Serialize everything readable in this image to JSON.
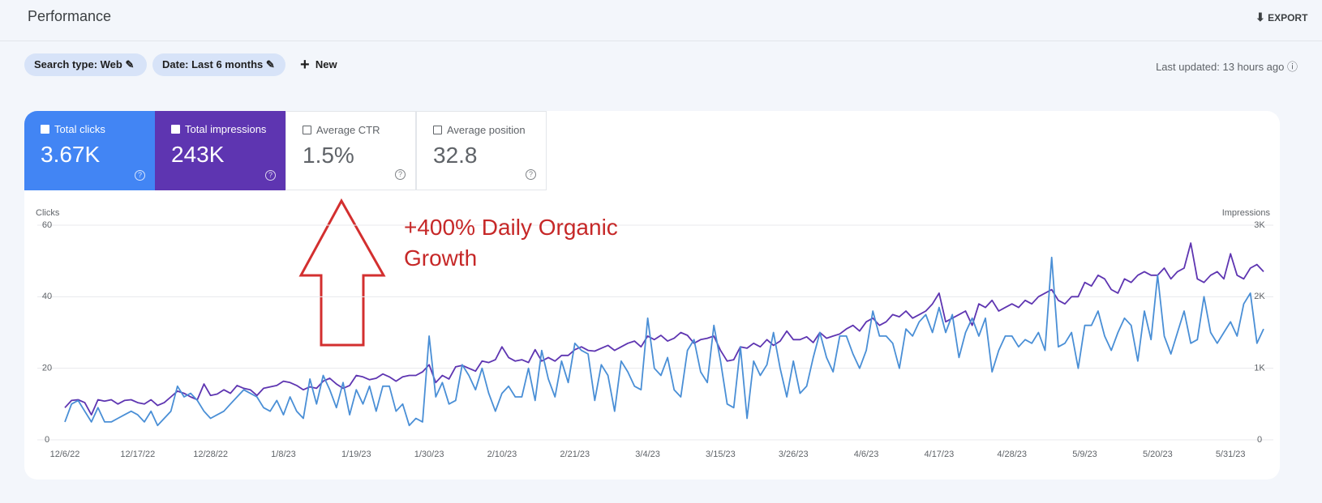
{
  "header": {
    "title": "Performance",
    "export": "EXPORT"
  },
  "filters": {
    "search_type": "Search type: Web",
    "date": "Date: Last 6 months",
    "new": "New",
    "last_updated": "Last updated: 13 hours ago"
  },
  "metrics": [
    {
      "label": "Total clicks",
      "value": "3.67K"
    },
    {
      "label": "Total impressions",
      "value": "243K"
    },
    {
      "label": "Average CTR",
      "value": "1.5%"
    },
    {
      "label": "Average position",
      "value": "32.8"
    }
  ],
  "annotation": "+400% Daily Organic Growth",
  "chart_data": {
    "type": "line",
    "y_label": "Clicks",
    "y2_label": "Impressions",
    "categories": [
      "12/6/22",
      null,
      null,
      null,
      null,
      null,
      null,
      null,
      null,
      null,
      null,
      "12/17/22",
      null,
      null,
      null,
      null,
      null,
      null,
      null,
      null,
      null,
      null,
      "12/28/22",
      null,
      null,
      null,
      null,
      null,
      null,
      null,
      null,
      null,
      null,
      "1/8/23",
      null,
      null,
      null,
      null,
      null,
      null,
      null,
      null,
      null,
      null,
      "1/19/23",
      null,
      null,
      null,
      null,
      null,
      null,
      null,
      null,
      null,
      null,
      "1/30/23",
      null,
      null,
      null,
      null,
      null,
      null,
      null,
      null,
      null,
      null,
      "2/10/23",
      null,
      null,
      null,
      null,
      null,
      null,
      null,
      null,
      null,
      null,
      "2/21/23",
      null,
      null,
      null,
      null,
      null,
      null,
      null,
      null,
      null,
      null,
      "3/4/23",
      null,
      null,
      null,
      null,
      null,
      null,
      null,
      null,
      null,
      null,
      "3/15/23",
      null,
      null,
      null,
      null,
      null,
      null,
      null,
      null,
      null,
      null,
      "3/26/23",
      null,
      null,
      null,
      null,
      null,
      null,
      null,
      null,
      null,
      null,
      "4/6/23",
      null,
      null,
      null,
      null,
      null,
      null,
      null,
      null,
      null,
      null,
      "4/17/23",
      null,
      null,
      null,
      null,
      null,
      null,
      null,
      null,
      null,
      null,
      "4/28/23",
      null,
      null,
      null,
      null,
      null,
      null,
      null,
      null,
      null,
      null,
      "5/9/23",
      null,
      null,
      null,
      null,
      null,
      null,
      null,
      null,
      null,
      null,
      "5/20/23",
      null,
      null,
      null,
      null,
      null,
      null,
      null,
      null,
      null,
      null,
      "5/31/23",
      null,
      null,
      null,
      null,
      null
    ],
    "ylim": [
      0,
      60
    ],
    "yticks": [
      0,
      20,
      40,
      60
    ],
    "y2lim": [
      0,
      3000
    ],
    "y2ticks": [
      0,
      {
        "value": 1000,
        "label": "1K"
      },
      {
        "value": 2000,
        "label": "2K"
      },
      {
        "value": 3000,
        "label": "3K"
      }
    ],
    "grid": true,
    "series": [
      {
        "name": "Impressions",
        "color": "#5e35b1",
        "axis": "y2",
        "values": [
          450,
          550,
          560,
          520,
          350,
          560,
          540,
          560,
          500,
          550,
          560,
          520,
          500,
          560,
          480,
          520,
          600,
          680,
          650,
          600,
          560,
          780,
          620,
          640,
          700,
          650,
          760,
          720,
          700,
          620,
          720,
          740,
          760,
          820,
          800,
          760,
          700,
          740,
          720,
          820,
          860,
          780,
          720,
          760,
          900,
          880,
          840,
          860,
          920,
          880,
          820,
          880,
          900,
          900,
          950,
          1050,
          800,
          900,
          850,
          1020,
          1040,
          1000,
          960,
          1100,
          1080,
          1120,
          1300,
          1150,
          1100,
          1120,
          1080,
          1260,
          1100,
          1150,
          1100,
          1180,
          1180,
          1260,
          1300,
          1250,
          1240,
          1280,
          1320,
          1250,
          1300,
          1350,
          1380,
          1300,
          1450,
          1400,
          1460,
          1380,
          1420,
          1500,
          1460,
          1350,
          1400,
          1420,
          1450,
          1250,
          1100,
          1120,
          1300,
          1280,
          1350,
          1300,
          1400,
          1320,
          1380,
          1520,
          1400,
          1400,
          1440,
          1360,
          1500,
          1420,
          1450,
          1480,
          1550,
          1600,
          1520,
          1650,
          1700,
          1600,
          1650,
          1750,
          1720,
          1800,
          1700,
          1750,
          1800,
          1900,
          2050,
          1650,
          1700,
          1750,
          1800,
          1600,
          1900,
          1850,
          1950,
          1800,
          1850,
          1900,
          1850,
          1950,
          1900,
          2000,
          2050,
          2100,
          1950,
          1900,
          2000,
          2000,
          2200,
          2150,
          2300,
          2250,
          2100,
          2050,
          2250,
          2200,
          2300,
          2350,
          2300,
          2300,
          2400,
          2250,
          2350,
          2400,
          2750,
          2250,
          2200,
          2300,
          2350,
          2250,
          2600,
          2300,
          2250,
          2400,
          2450,
          2350
        ]
      },
      {
        "name": "Clicks",
        "color": "#4a8fd6",
        "axis": "y",
        "values": [
          5,
          10,
          11,
          8,
          5,
          9,
          5,
          5,
          6,
          7,
          8,
          7,
          5,
          8,
          4,
          6,
          8,
          15,
          12,
          13,
          11,
          8,
          6,
          7,
          8,
          10,
          12,
          14,
          13,
          12,
          9,
          8,
          11,
          7,
          12,
          8,
          6,
          17,
          10,
          18,
          14,
          9,
          16,
          7,
          14,
          10,
          15,
          8,
          15,
          15,
          8,
          10,
          4,
          6,
          5,
          29,
          12,
          16,
          10,
          11,
          21,
          18,
          14,
          20,
          13,
          8,
          13,
          15,
          12,
          12,
          20,
          11,
          25,
          17,
          12,
          22,
          16,
          27,
          25,
          24,
          11,
          21,
          18,
          8,
          22,
          19,
          15,
          14,
          34,
          20,
          18,
          23,
          14,
          12,
          25,
          28,
          19,
          16,
          32,
          22,
          10,
          9,
          26,
          6,
          22,
          18,
          21,
          30,
          20,
          12,
          22,
          13,
          15,
          23,
          30,
          23,
          19,
          29,
          29,
          24,
          20,
          25,
          36,
          29,
          29,
          27,
          20,
          31,
          29,
          33,
          35,
          30,
          37,
          30,
          35,
          23,
          30,
          34,
          29,
          34,
          19,
          25,
          29,
          29,
          26,
          28,
          27,
          30,
          25,
          51,
          26,
          27,
          30,
          20,
          32,
          32,
          36,
          29,
          25,
          30,
          34,
          32,
          22,
          36,
          28,
          46,
          29,
          24,
          30,
          36,
          27,
          28,
          40,
          30,
          27,
          30,
          33,
          29,
          38,
          41,
          27,
          31
        ]
      }
    ]
  }
}
